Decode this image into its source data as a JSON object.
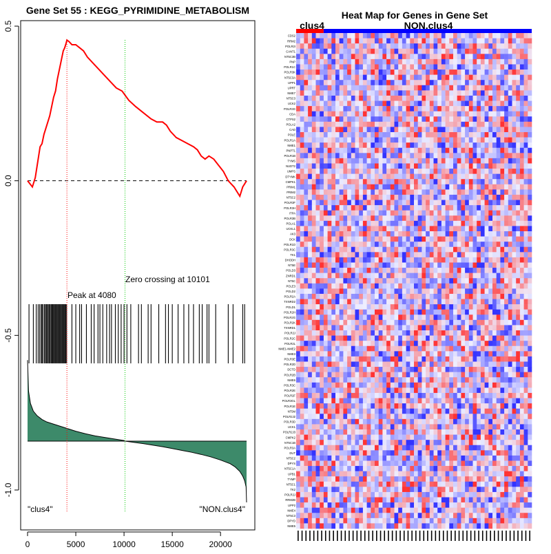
{
  "chart_data": [
    {
      "type": "line",
      "title": "Gene Set  55 : KEGG_PYRIMIDINE_METABOLISM",
      "xlim": [
        0,
        22700
      ],
      "ylim": [
        -1.05,
        0.52
      ],
      "x_ticks": [
        0,
        5000,
        10000,
        15000,
        20000
      ],
      "x_tick_labels": [
        "0",
        "5000",
        "10000",
        "15000",
        "20000"
      ],
      "y_ticks": [
        0.5,
        0.0,
        -0.5,
        -1.0
      ],
      "y_tick_labels": [
        "0.5",
        "0.0",
        "-0.5",
        "-1.0"
      ],
      "series": [
        {
          "name": "running enrichment score",
          "color": "#ff0000",
          "x": [
            0,
            500,
            800,
            1000,
            1150,
            1300,
            1500,
            1700,
            1900,
            2100,
            2300,
            2500,
            2700,
            2900,
            3100,
            3300,
            3500,
            3700,
            3850,
            4000,
            4080,
            4300,
            4600,
            5000,
            5400,
            5800,
            6200,
            6800,
            7400,
            8000,
            8600,
            9200,
            9800,
            10500,
            11200,
            12000,
            12800,
            13400,
            14000,
            14400,
            14800,
            15400,
            16000,
            16600,
            17200,
            17600,
            18000,
            18400,
            18800,
            19300,
            19800,
            20300,
            20800,
            21400,
            22000,
            22300,
            22500,
            22700
          ],
          "y": [
            0.0,
            -0.02,
            0.01,
            0.05,
            0.08,
            0.11,
            0.12,
            0.15,
            0.17,
            0.19,
            0.21,
            0.24,
            0.27,
            0.29,
            0.33,
            0.36,
            0.39,
            0.42,
            0.43,
            0.445,
            0.455,
            0.45,
            0.44,
            0.44,
            0.43,
            0.42,
            0.4,
            0.38,
            0.36,
            0.34,
            0.32,
            0.3,
            0.29,
            0.26,
            0.24,
            0.22,
            0.2,
            0.19,
            0.19,
            0.18,
            0.16,
            0.14,
            0.13,
            0.12,
            0.11,
            0.1,
            0.08,
            0.07,
            0.08,
            0.07,
            0.05,
            0.03,
            0.0,
            -0.02,
            -0.05,
            -0.02,
            -0.01,
            0.0
          ]
        }
      ],
      "baseline": {
        "y": 0.0,
        "style": "dashed",
        "color": "#000000"
      },
      "peak": {
        "x": 4080,
        "label": "Peak at 4080",
        "color": "#ff0000"
      },
      "zero_crossing": {
        "x": 10101,
        "label": "Zero crossing at 10101",
        "color": "#00cc00"
      },
      "gene_hits_x": [
        150,
        600,
        900,
        1100,
        1250,
        1400,
        1500,
        1600,
        1750,
        1850,
        1950,
        2050,
        2150,
        2250,
        2350,
        2450,
        2550,
        2600,
        2700,
        2750,
        2850,
        2900,
        3000,
        3050,
        3150,
        3200,
        3300,
        3350,
        3450,
        3500,
        3600,
        3650,
        3750,
        3800,
        3900,
        3950,
        4050,
        4600,
        5000,
        5400,
        5600,
        6100,
        6600,
        6900,
        7300,
        7500,
        7800,
        8200,
        8500,
        8700,
        9100,
        9400,
        9700,
        10000,
        10300,
        10700,
        11500,
        11800,
        12500,
        12800,
        13600,
        14300,
        14600,
        15000,
        15600,
        16200,
        16700,
        17200,
        17800,
        18100,
        18600,
        18800,
        19500,
        20800,
        21300,
        22300,
        22500
      ],
      "ranked_metric": {
        "fill_color": "#3d8a6a",
        "x": [
          0,
          100,
          300,
          600,
          1000,
          1500,
          2000,
          3000,
          4000,
          5000,
          6000,
          7000,
          8000,
          9000,
          10000,
          10101,
          11000,
          12000,
          13000,
          14000,
          15000,
          16000,
          17000,
          18000,
          19000,
          20000,
          21000,
          21500,
          22000,
          22300,
          22500,
          22650,
          22700
        ],
        "y": [
          -0.58,
          -0.68,
          -0.72,
          -0.745,
          -0.76,
          -0.772,
          -0.78,
          -0.79,
          -0.8,
          -0.81,
          -0.818,
          -0.825,
          -0.83,
          -0.835,
          -0.84,
          -0.842,
          -0.846,
          -0.85,
          -0.855,
          -0.86,
          -0.866,
          -0.872,
          -0.878,
          -0.885,
          -0.893,
          -0.903,
          -0.915,
          -0.925,
          -0.94,
          -0.955,
          -0.97,
          -0.99,
          -1.04
        ],
        "baseline_y": -0.842
      },
      "group_labels": [
        "\"clus4\"",
        "\"NON.clus4\""
      ]
    },
    {
      "type": "heatmap",
      "title": "Heat Map for Genes in Gene Set",
      "column_groups": [
        {
          "label": "clus4",
          "color": "#ff0000",
          "count": 7
        },
        {
          "label": "NON.clus4",
          "color": "#0000ff",
          "count": 53
        }
      ],
      "low_color": "#3333ff",
      "mid_color": "#eeeeff",
      "high_color": "#ff3333",
      "genes": [
        "CDS2",
        "RRM2",
        "POLR2I",
        "CANT1",
        "NT5C3B",
        "PNP",
        "POLR1C",
        "POLR3K",
        "NT5C3A",
        "UPP1",
        "UPRT",
        "NME7",
        "NT5C3",
        "UCK2",
        "POLR3G",
        "CDA",
        "CTPS2",
        "POLA2",
        "CAD",
        "POLE",
        "POLR1A",
        "NME1",
        "PNPT1",
        "POLR1B",
        "TYMS",
        "NUDT2",
        "UMPS",
        "DTYMK",
        "CMPK1",
        "PRIM1",
        "PRIM2",
        "NT5C2",
        "POLR3F",
        "POLR3H",
        "ITPA",
        "POLR3B",
        "POLA1",
        "UCKL1",
        "AK3",
        "DCK",
        "POLR1D",
        "POLR3C",
        "TK1",
        "DHODH",
        "NT5E",
        "POLD3",
        "ZNRD1",
        "NT5C",
        "POLE3",
        "POLD2",
        "POLR2A",
        "TXNRD2",
        "POLD1",
        "POLR2H",
        "POLR2G",
        "POLR2K",
        "TXNRD1",
        "POLR2J",
        "POLR2C",
        "POLR2L",
        "NME1-NME2",
        "NME3",
        "POLR3E",
        "POLR2D",
        "DCTD",
        "POLR2B",
        "NME6",
        "POLR3C",
        "POLR2E",
        "POLR2F",
        "POLR3GL",
        "POLR1E",
        "NT5M",
        "POLR2J2",
        "POLR3D",
        "UCK1",
        "POLR2J3",
        "CMPK2",
        "NT5C1B",
        "POLR3A",
        "DUT",
        "NT5C2",
        "DPYS",
        "NT5C1A",
        "UPB1",
        "TYMP",
        "NT5C1",
        "TK2",
        "POLR2J",
        "RRM2B",
        "UPP2",
        "NME4",
        "NT5C3",
        "DPYD",
        "NME5"
      ]
    }
  ]
}
